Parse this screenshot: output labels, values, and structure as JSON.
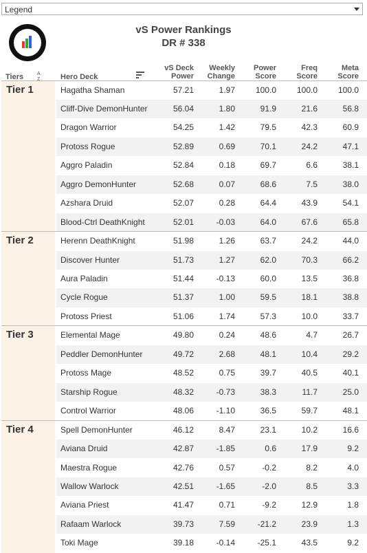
{
  "legend": {
    "label": "Legend"
  },
  "header": {
    "title": "vS Power Rankings",
    "subtitle": "DR # 338"
  },
  "columns": {
    "tiers": "Tiers",
    "deck": "Hero Deck",
    "numeric": [
      [
        "vS Deck",
        "Power"
      ],
      [
        "Weekly",
        "Change"
      ],
      [
        "Power",
        "Score"
      ],
      [
        "Freq",
        "Score"
      ],
      [
        "Meta",
        "Score"
      ]
    ]
  },
  "tiers": [
    {
      "label": "Tier 1",
      "rows": [
        [
          "Hagatha Shaman",
          "57.21",
          "1.97",
          "100.0",
          "100.0",
          "100.0"
        ],
        [
          "Cliff-Dive DemonHunter",
          "56.04",
          "1.80",
          "91.9",
          "21.6",
          "56.8"
        ],
        [
          "Dragon Warrior",
          "54.25",
          "1.42",
          "79.5",
          "42.3",
          "60.9"
        ],
        [
          "Protoss Rogue",
          "52.89",
          "0.69",
          "70.1",
          "24.2",
          "47.1"
        ],
        [
          "Aggro Paladin",
          "52.84",
          "0.18",
          "69.7",
          "6.6",
          "38.1"
        ],
        [
          "Aggro DemonHunter",
          "52.68",
          "0.07",
          "68.6",
          "7.5",
          "38.0"
        ],
        [
          "Azshara Druid",
          "52.07",
          "0.28",
          "64.4",
          "43.9",
          "54.1"
        ],
        [
          "Blood-Ctrl DeathKnight",
          "52.01",
          "-0.03",
          "64.0",
          "67.6",
          "65.8"
        ]
      ]
    },
    {
      "label": "Tier 2",
      "rows": [
        [
          "Herenn DeathKnight",
          "51.98",
          "1.26",
          "63.7",
          "24.2",
          "44.0"
        ],
        [
          "Discover Hunter",
          "51.73",
          "1.27",
          "62.0",
          "70.3",
          "66.2"
        ],
        [
          "Aura Paladin",
          "51.44",
          "-0.13",
          "60.0",
          "13.5",
          "36.8"
        ],
        [
          "Cycle Rogue",
          "51.37",
          "1.00",
          "59.5",
          "18.1",
          "38.8"
        ],
        [
          "Protoss Priest",
          "51.06",
          "1.74",
          "57.3",
          "10.0",
          "33.7"
        ]
      ]
    },
    {
      "label": "Tier 3",
      "rows": [
        [
          "Elemental Mage",
          "49.80",
          "0.24",
          "48.6",
          "4.7",
          "26.7"
        ],
        [
          "Peddler DemonHunter",
          "49.72",
          "2.68",
          "48.1",
          "10.4",
          "29.2"
        ],
        [
          "Protoss Mage",
          "48.52",
          "0.75",
          "39.7",
          "40.5",
          "40.1"
        ],
        [
          "Starship Rogue",
          "48.32",
          "-0.73",
          "38.3",
          "11.7",
          "25.0"
        ],
        [
          "Control Warrior",
          "48.06",
          "-1.10",
          "36.5",
          "59.7",
          "48.1"
        ]
      ]
    },
    {
      "label": "Tier 4",
      "rows": [
        [
          "Spell DemonHunter",
          "46.12",
          "8.47",
          "23.1",
          "10.2",
          "16.6"
        ],
        [
          "Aviana Druid",
          "42.87",
          "-1.85",
          "0.6",
          "17.9",
          "9.2"
        ],
        [
          "Maestra Rogue",
          "42.76",
          "0.57",
          "-0.2",
          "8.2",
          "4.0"
        ],
        [
          "Wallow Warlock",
          "42.51",
          "-1.65",
          "-2.0",
          "8.5",
          "3.3"
        ],
        [
          "Aviana Priest",
          "41.47",
          "0.71",
          "-9.2",
          "12.9",
          "1.8"
        ],
        [
          "Rafaam Warlock",
          "39.73",
          "7.59",
          "-21.2",
          "23.9",
          "1.3"
        ],
        [
          "Toki Mage",
          "39.18",
          "-0.14",
          "-25.1",
          "43.5",
          "9.2"
        ]
      ]
    }
  ]
}
